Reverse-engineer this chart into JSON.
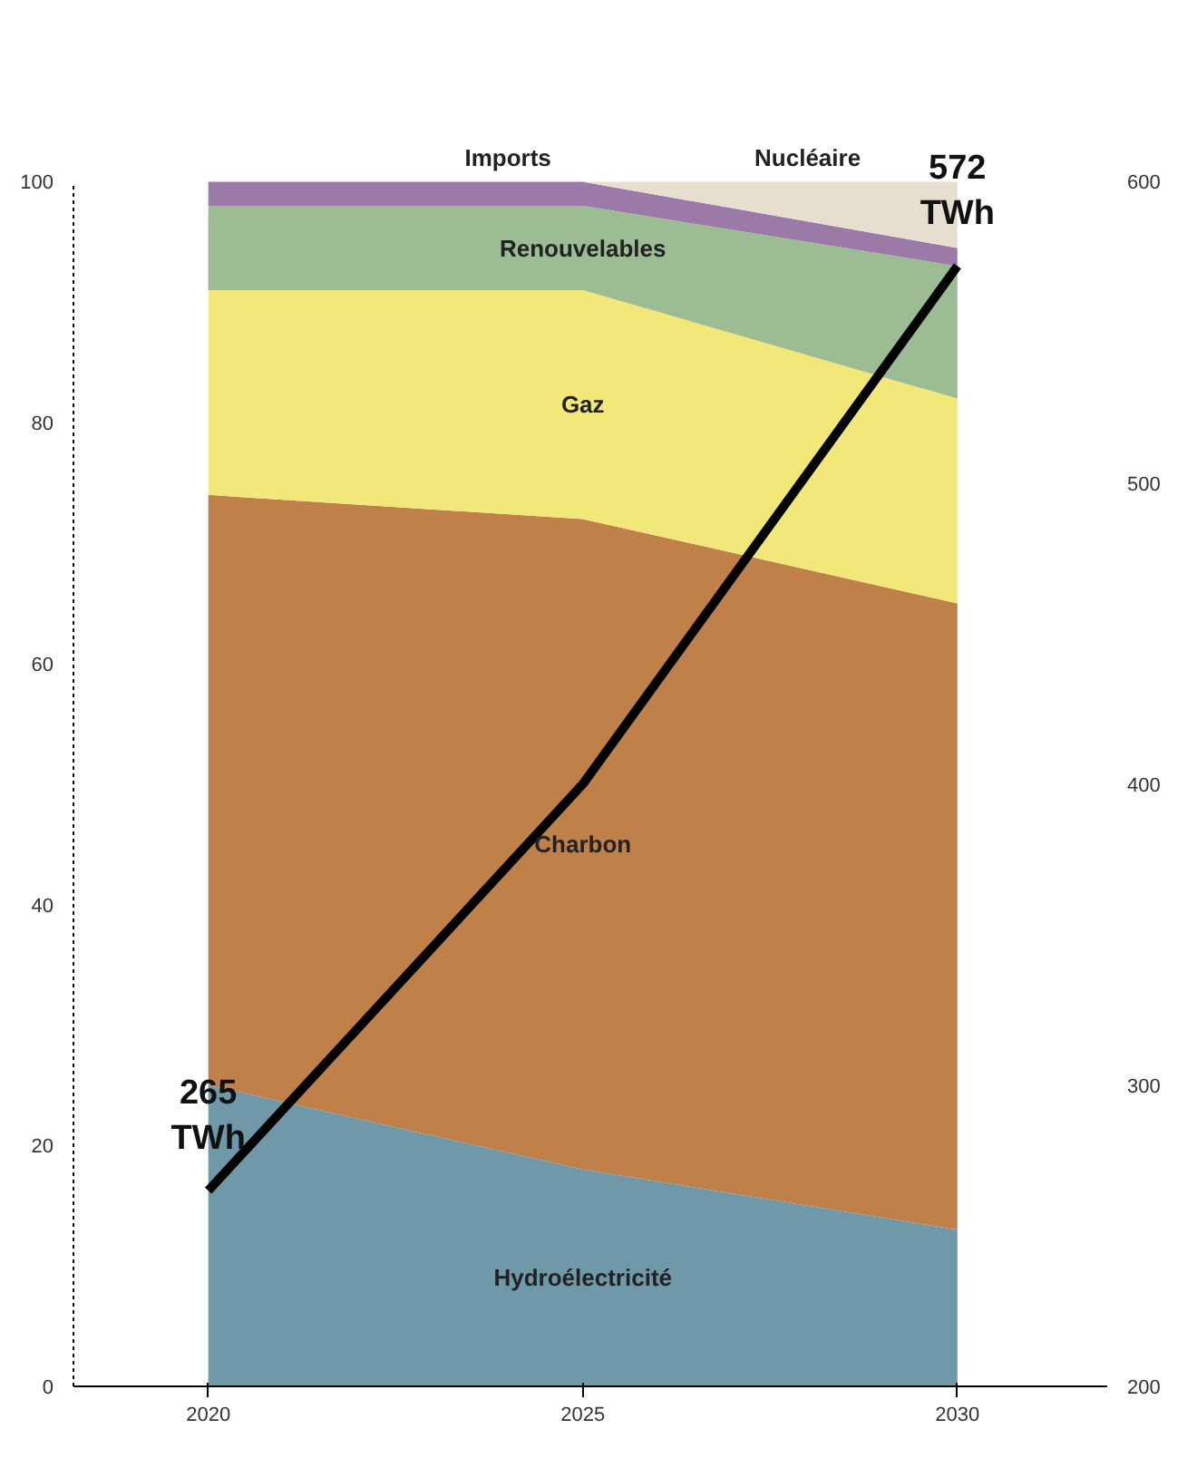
{
  "chart_data": {
    "type": "area",
    "stacked": true,
    "x": [
      2020,
      2025,
      2030
    ],
    "xlim": [
      2018.2,
      2032
    ],
    "xticks": [
      2020,
      2025,
      2030
    ],
    "ylim": [
      0,
      100
    ],
    "yticks": [
      0,
      20,
      40,
      60,
      80,
      100
    ],
    "y2lim": [
      200,
      600
    ],
    "y2ticks": [
      200,
      300,
      400,
      500,
      600
    ],
    "grid": false,
    "series": [
      {
        "name": "Hydroélectricité",
        "color": "#6f98a8",
        "values": [
          25,
          18,
          13
        ]
      },
      {
        "name": "Charbon",
        "color": "#c0804a",
        "values": [
          49,
          54,
          52
        ]
      },
      {
        "name": "Gaz",
        "color": "#f2e87a",
        "values": [
          17,
          19,
          17
        ]
      },
      {
        "name": "Renouvelables",
        "color": "#9cbc94",
        "values": [
          7,
          7,
          11
        ]
      },
      {
        "name": "Imports",
        "color": "#9c7aa8",
        "values": [
          2,
          2,
          1.5
        ]
      },
      {
        "name": "Nucléaire",
        "color": "#e6dfcf",
        "values": [
          0,
          0,
          5.5
        ]
      },
      {
        "type": "line",
        "axis": "y2",
        "color": "#000000",
        "values": [
          265,
          400,
          572
        ],
        "value_labels": [
          "265 TWh",
          null,
          "572 TWh"
        ]
      }
    ]
  }
}
